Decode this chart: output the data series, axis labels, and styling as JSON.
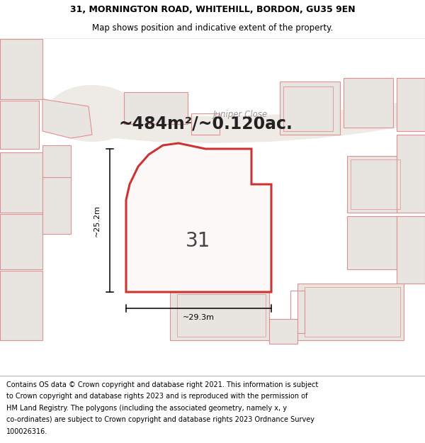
{
  "title_line1": "31, MORNINGTON ROAD, WHITEHILL, BORDON, GU35 9EN",
  "title_line2": "Map shows position and indicative extent of the property.",
  "footer_lines": [
    "Contains OS data © Crown copyright and database right 2021. This information is subject",
    "to Crown copyright and database rights 2023 and is reproduced with the permission of",
    "HM Land Registry. The polygons (including the associated geometry, namely x, y",
    "co-ordinates) are subject to Crown copyright and database rights 2023 Ordnance Survey",
    "100026316."
  ],
  "area_label": "~484m²/~0.120ac.",
  "street_label": "Juniper Close",
  "property_number": "31",
  "dim_width": "~29.3m",
  "dim_height": "~25.2m",
  "map_bg": "#f2eeea",
  "road_color": "#f8f6f3",
  "building_fill": "#e8e4e0",
  "highlight_fill": "#fcf8f8",
  "red_color": "#cc3333",
  "pink_color": "#e09090",
  "text_color": "#000000",
  "gray_text": "#888888",
  "title_fontsize": 9.0,
  "footer_fontsize": 7.0,
  "area_fontsize": 17,
  "street_fontsize": 8.5,
  "number_fontsize": 20,
  "dim_fontsize": 8.0
}
